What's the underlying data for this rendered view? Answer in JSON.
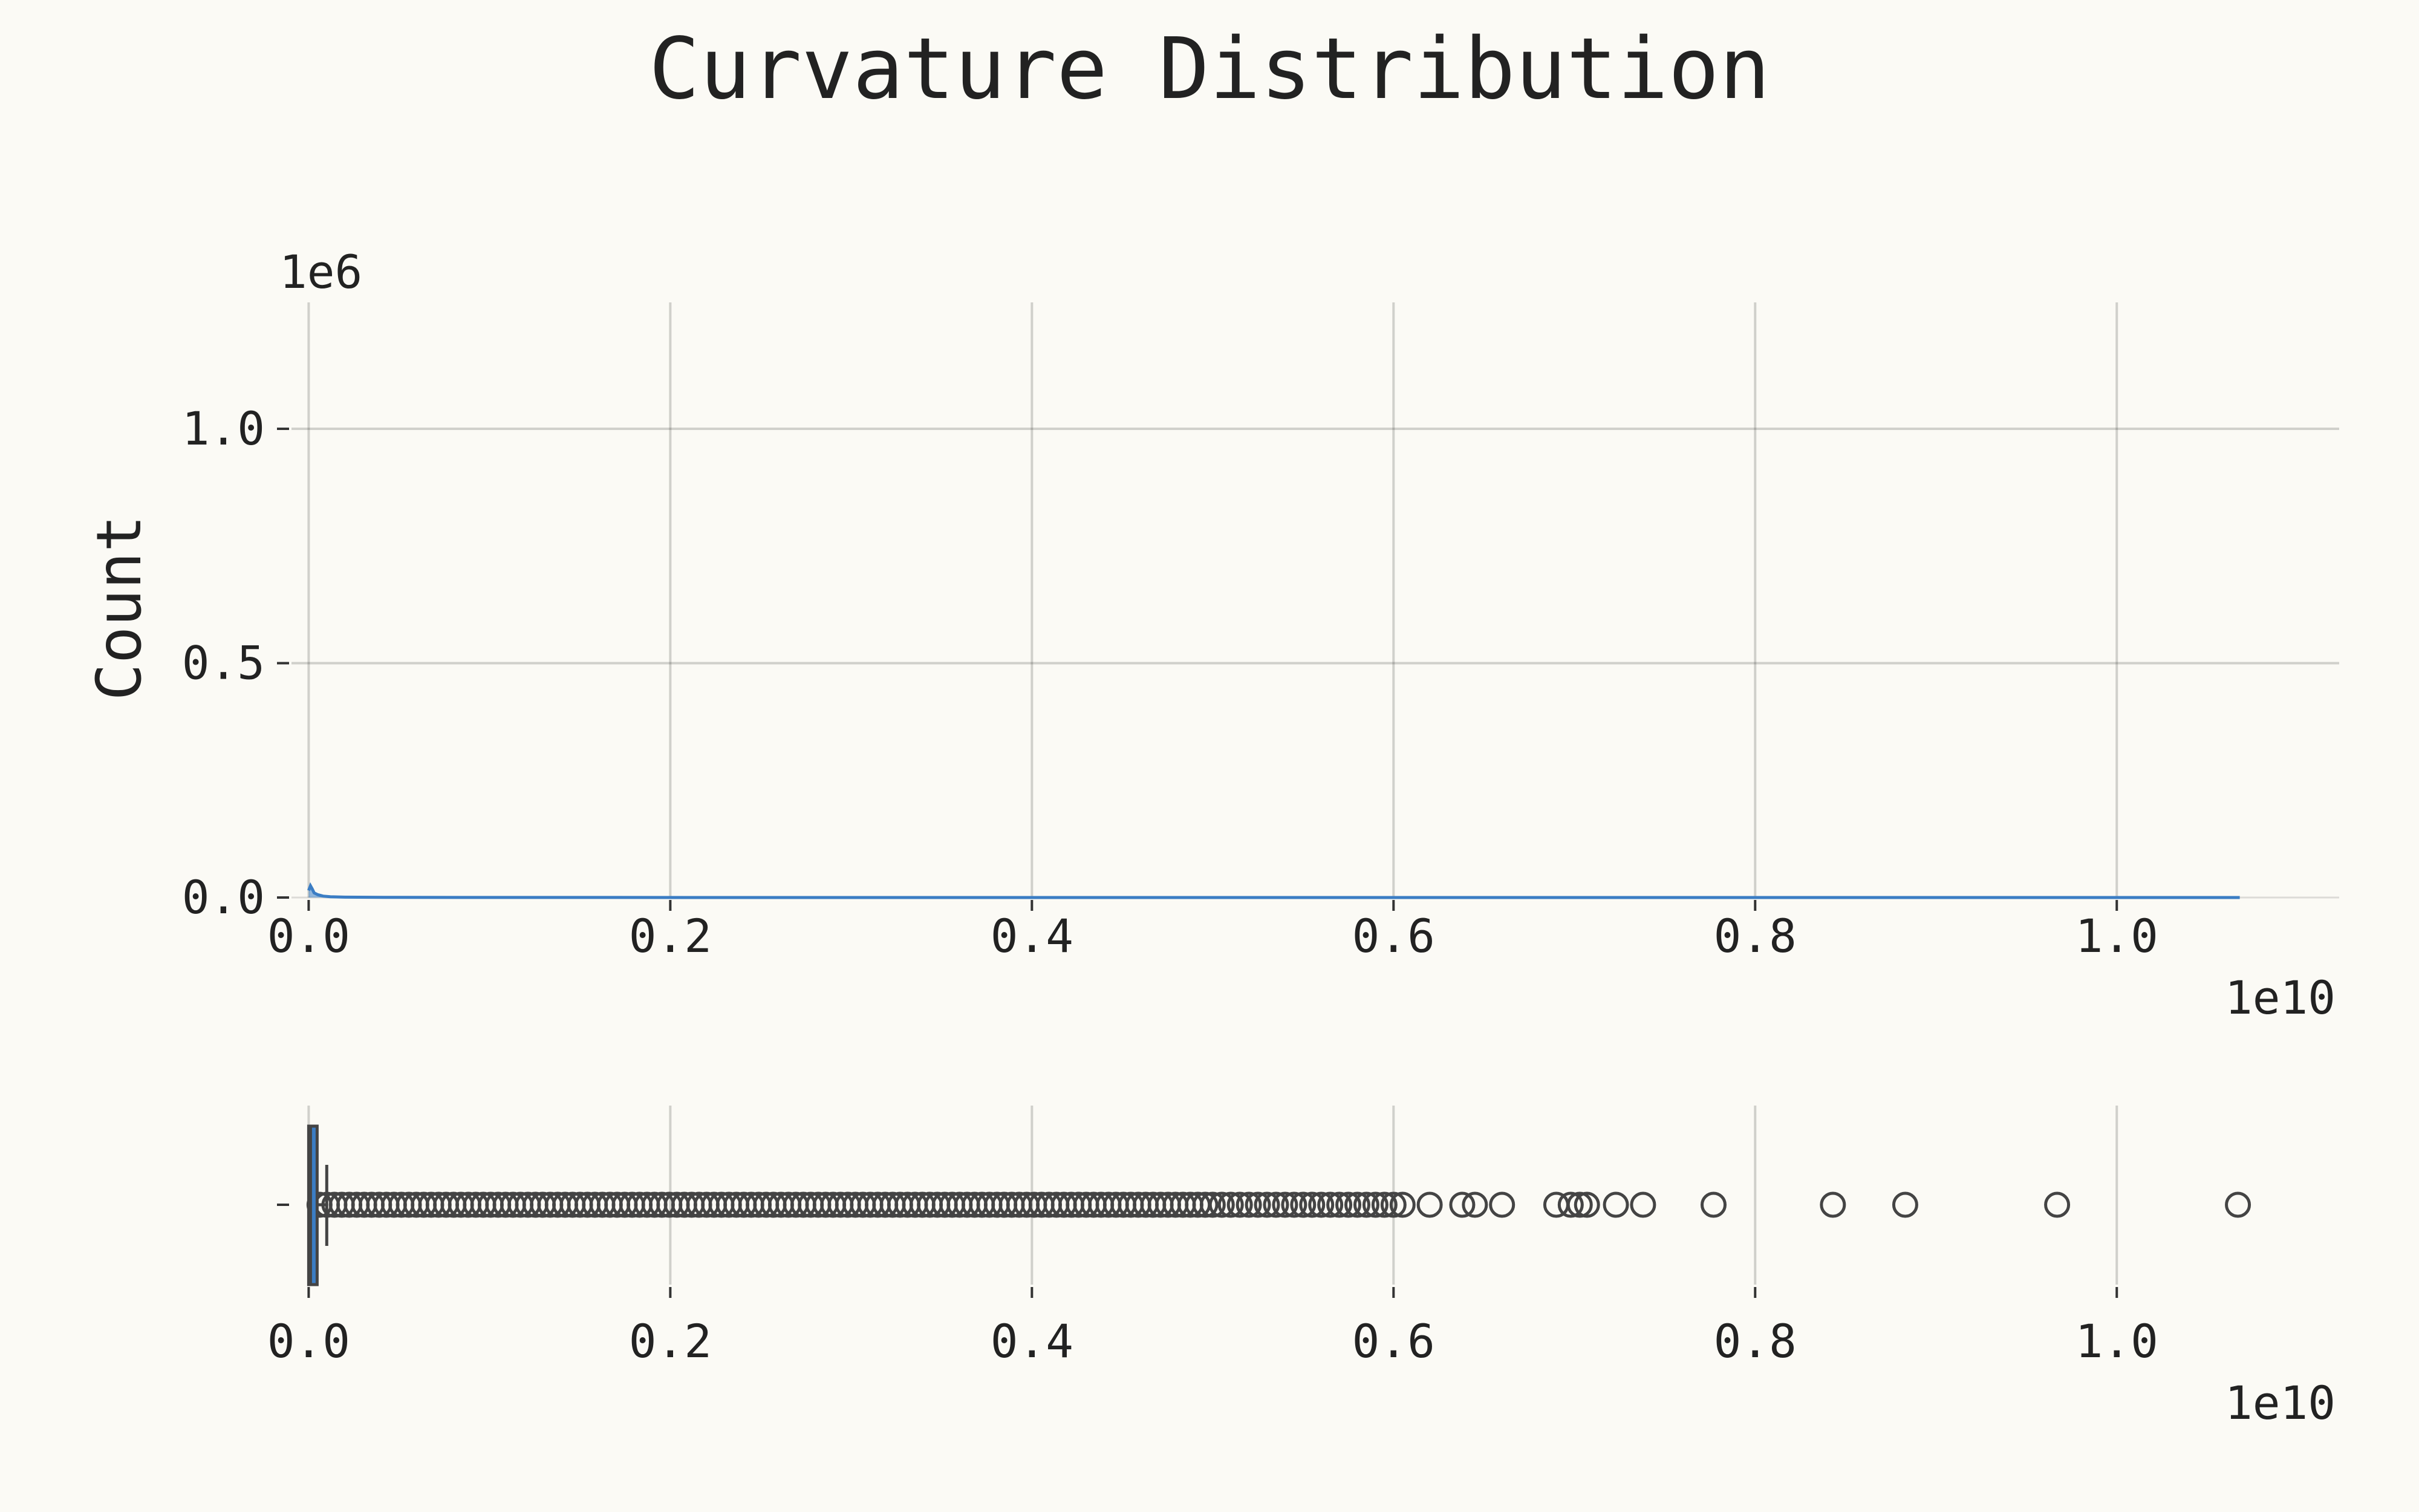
{
  "chart_data": [
    {
      "type": "histogram",
      "title": "Curvature Distribution",
      "xlabel": "",
      "ylabel": "Count",
      "x_scale_label": "1e10",
      "y_scale_label": "1e6",
      "x_ticks": [
        0.0,
        0.2,
        0.4,
        0.6,
        0.8,
        1.0
      ],
      "x_tick_labels": [
        "0.0",
        "0.2",
        "0.4",
        "0.6",
        "0.8",
        "1.0"
      ],
      "y_ticks": [
        0.0,
        0.5,
        1.0
      ],
      "y_tick_labels": [
        "0.0",
        "0.5",
        "1.0"
      ],
      "xlim": [
        -0.0095,
        1.123
      ],
      "ylim": [
        0,
        1.2
      ],
      "grid": true,
      "series": [
        {
          "color": "#3b7dc4",
          "x": [
            0.0,
            0.001,
            0.002,
            0.003,
            0.005,
            0.008,
            0.012,
            0.02,
            0.05,
            0.1,
            0.3,
            0.6,
            1.068
          ],
          "values": [
            0.015,
            0.025,
            0.018,
            0.01,
            0.006,
            0.003,
            0.0015,
            0.0008,
            0.0003,
            0.0001,
            2e-05,
            1e-05,
            0.0
          ]
        }
      ]
    },
    {
      "type": "boxplot",
      "x_scale_label": "1e10",
      "x_ticks": [
        0.0,
        0.2,
        0.4,
        0.6,
        0.8,
        1.0
      ],
      "x_tick_labels": [
        "0.0",
        "0.2",
        "0.4",
        "0.6",
        "0.8",
        "1.0"
      ],
      "xlim": [
        -0.0095,
        1.123
      ],
      "grid": true,
      "box": {
        "q1": 0.0,
        "q3": 0.004,
        "median": 0.001,
        "whisker_low": 0.0,
        "whisker_high": 0.01,
        "box_color": "#3b7dc4",
        "edge_color": "#444444"
      },
      "outlier_dense_range": [
        0.006,
        0.5
      ],
      "outliers": [
        0.505,
        0.51,
        0.515,
        0.52,
        0.525,
        0.53,
        0.535,
        0.54,
        0.545,
        0.55,
        0.555,
        0.56,
        0.565,
        0.57,
        0.575,
        0.58,
        0.585,
        0.59,
        0.595,
        0.6,
        0.605,
        0.62,
        0.638,
        0.645,
        0.66,
        0.69,
        0.698,
        0.703,
        0.707,
        0.723,
        0.738,
        0.777,
        0.843,
        0.883,
        0.967,
        1.067
      ]
    }
  ]
}
